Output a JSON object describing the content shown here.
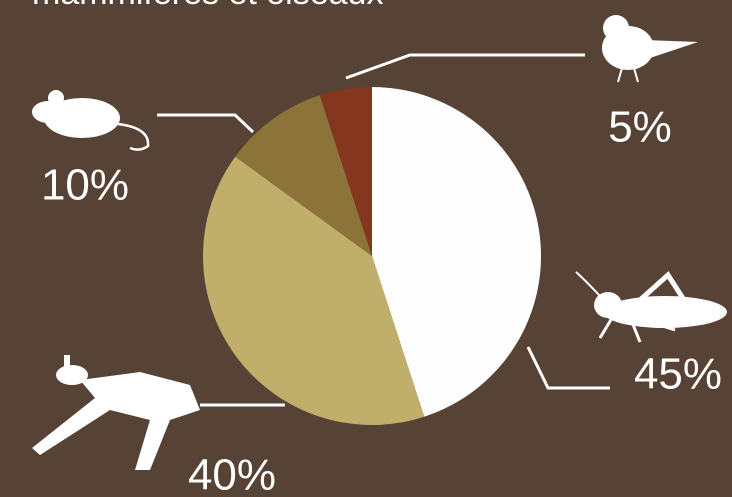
{
  "chart_data": {
    "type": "pie",
    "title": "mammifères et oiseaux",
    "values": [
      45,
      40,
      10,
      5
    ],
    "value_labels": [
      "45%",
      "40%",
      "10%",
      "5%"
    ],
    "colors": [
      "#fefefe",
      "#bfaf6a",
      "#8c7339",
      "#84361f"
    ]
  }
}
